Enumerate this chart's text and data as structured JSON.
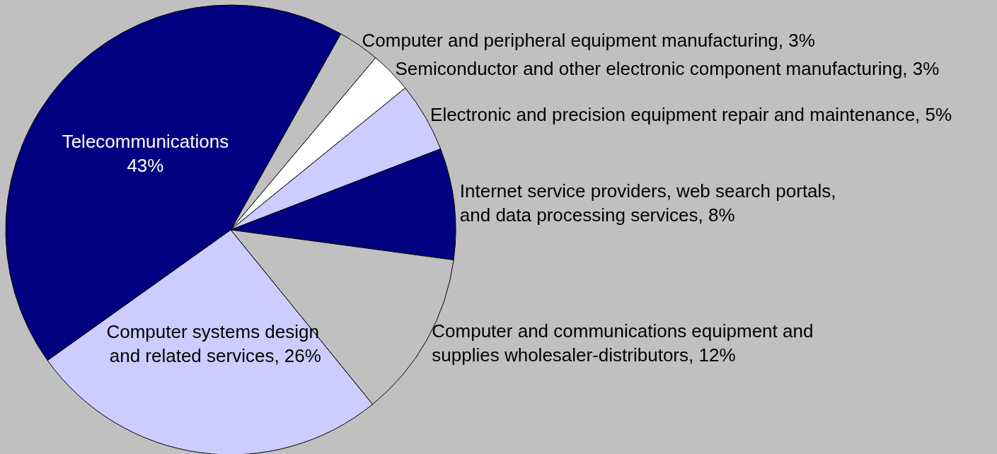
{
  "chart_data": {
    "type": "pie",
    "categories": [
      "Computer and peripheral equipment manufacturing",
      "Semiconductor and other electronic component manufacturing",
      "Electronic and precision equipment repair and maintenance",
      "Internet service providers, web search portals, and data processing services",
      "Computer and communications equipment and supplies wholesaler-distributors",
      "Computer systems design and related services",
      "Telecommunications"
    ],
    "values": [
      3,
      3,
      5,
      8,
      12,
      26,
      43
    ],
    "colors": [
      "#c0c0c0",
      "#ffffff",
      "#ccccff",
      "#000080",
      "#c0c0c0",
      "#ccccff",
      "#000080"
    ],
    "value_labels": [
      "3%",
      "3%",
      "5%",
      "8%",
      "12%",
      "26%",
      "43%"
    ]
  }
}
